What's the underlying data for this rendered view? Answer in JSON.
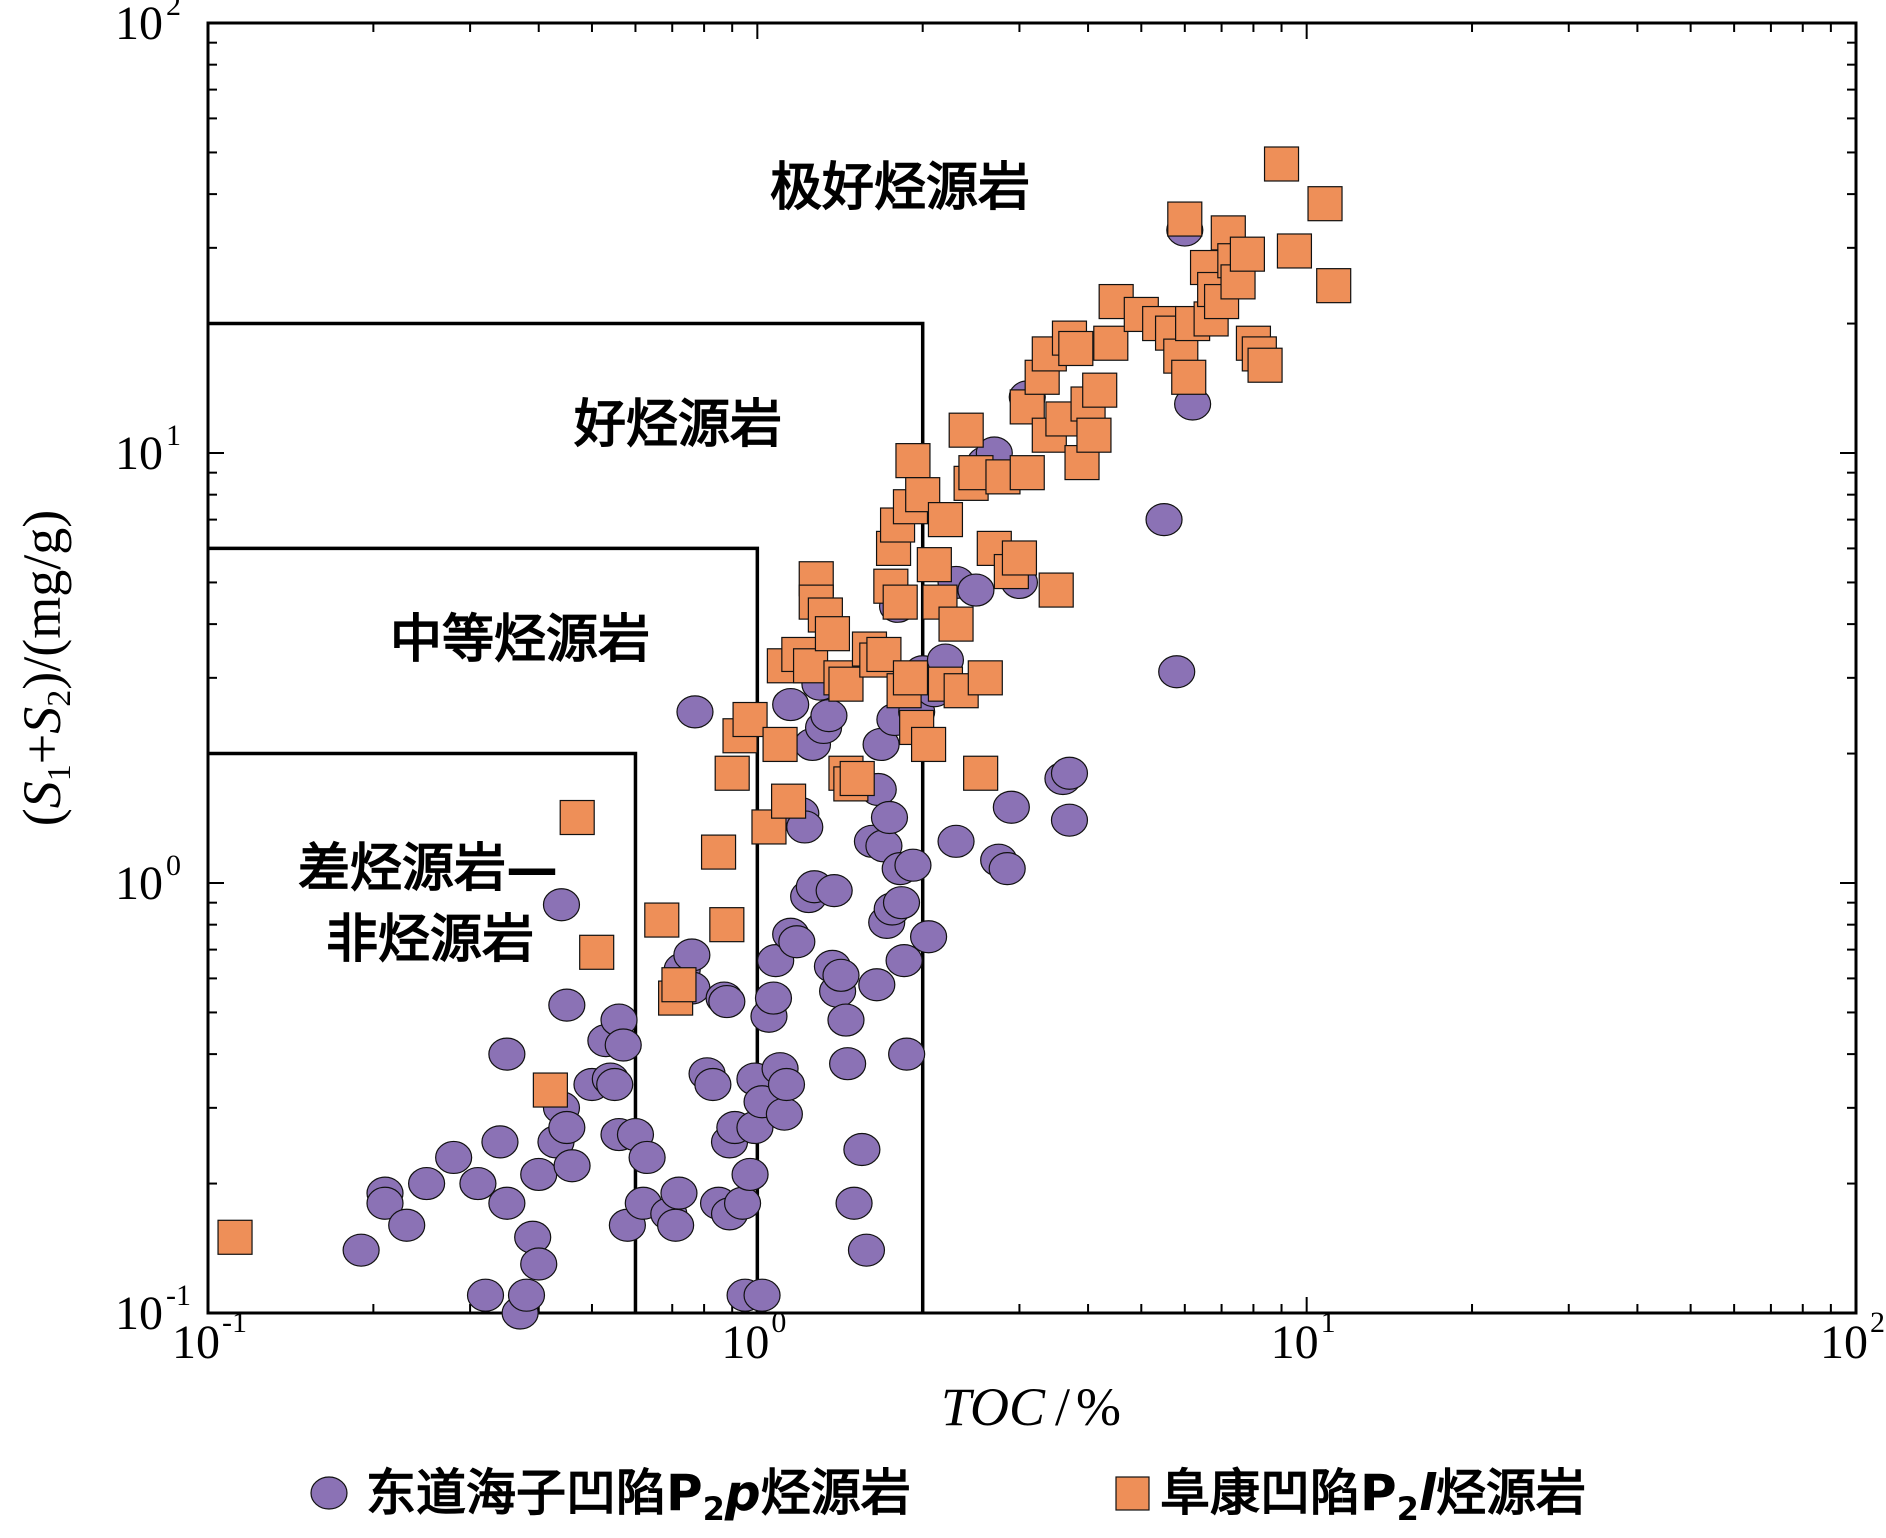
{
  "chart_data": {
    "type": "scatter",
    "x_scale": "log",
    "y_scale": "log",
    "xlim": [
      0.1,
      100
    ],
    "ylim": [
      0.1,
      100
    ],
    "grid": false,
    "legend_position": "bottom",
    "x_ticks": [
      {
        "base": "10",
        "exp": "-1",
        "value": 0.1
      },
      {
        "base": "10",
        "exp": "0",
        "value": 1
      },
      {
        "base": "10",
        "exp": "1",
        "value": 10
      },
      {
        "base": "10",
        "exp": "2",
        "value": 100
      }
    ],
    "y_ticks": [
      {
        "base": "10",
        "exp": "-1",
        "value": 0.1
      },
      {
        "base": "10",
        "exp": "0",
        "value": 1
      },
      {
        "base": "10",
        "exp": "1",
        "value": 10
      },
      {
        "base": "10",
        "exp": "2",
        "value": 100
      }
    ],
    "xlabel": {
      "main": "TOC",
      "separator": "/",
      "unit": "%"
    },
    "ylabel": {
      "p1": "(",
      "s1": "S",
      "sub1": "1",
      "plus": "+",
      "s2": "S",
      "sub2": "2",
      "p2": ")/(mg/g)"
    },
    "regions": [
      {
        "name": "极好烃源岩",
        "toc_max": 100,
        "s_max": 100
      },
      {
        "name": "好烃源岩",
        "toc_max": 2,
        "s_max": 20
      },
      {
        "name": "中等烃源岩",
        "toc_max": 1,
        "s_max": 6
      },
      {
        "name_line1": "差烃源岩—",
        "name_line2": "非烃源岩",
        "toc_max": 0.6,
        "s_max": 2
      }
    ],
    "series": [
      {
        "name": "东道海子凹陷P2p烃源岩",
        "legend_label": {
          "prefix": "东道海子凹陷P",
          "sub": "2",
          "italic": "p",
          "suffix": "烃源岩"
        },
        "marker": "circle",
        "color": "#8b72b5",
        "points": [
          [
            0.19,
            0.14
          ],
          [
            0.21,
            0.19
          ],
          [
            0.21,
            0.18
          ],
          [
            0.23,
            0.16
          ],
          [
            0.25,
            0.2
          ],
          [
            0.28,
            0.23
          ],
          [
            0.31,
            0.2
          ],
          [
            0.34,
            0.25
          ],
          [
            0.35,
            0.18
          ],
          [
            0.32,
            0.11
          ],
          [
            0.37,
            0.1
          ],
          [
            0.38,
            0.11
          ],
          [
            0.39,
            0.15
          ],
          [
            0.4,
            0.13
          ],
          [
            0.4,
            0.21
          ],
          [
            0.35,
            0.4
          ],
          [
            0.43,
            0.25
          ],
          [
            0.44,
            0.3
          ],
          [
            0.45,
            0.27
          ],
          [
            0.46,
            0.22
          ],
          [
            0.44,
            0.89
          ],
          [
            0.45,
            0.52
          ],
          [
            0.5,
            0.34
          ],
          [
            0.53,
            0.43
          ],
          [
            0.54,
            0.35
          ],
          [
            0.55,
            0.34
          ],
          [
            0.56,
            0.26
          ],
          [
            0.56,
            0.48
          ],
          [
            0.57,
            0.42
          ],
          [
            0.58,
            0.16
          ],
          [
            0.6,
            0.26
          ],
          [
            0.62,
            0.18
          ],
          [
            0.63,
            0.23
          ],
          [
            0.69,
            0.17
          ],
          [
            0.71,
            0.16
          ],
          [
            0.72,
            0.19
          ],
          [
            0.73,
            0.63
          ],
          [
            0.76,
            0.68
          ],
          [
            0.76,
            0.57
          ],
          [
            0.77,
            2.5
          ],
          [
            0.81,
            0.36
          ],
          [
            0.83,
            0.34
          ],
          [
            0.85,
            0.18
          ],
          [
            0.87,
            0.54
          ],
          [
            0.88,
            0.53
          ],
          [
            0.89,
            0.17
          ],
          [
            0.89,
            0.25
          ],
          [
            0.91,
            0.27
          ],
          [
            0.94,
            0.18
          ],
          [
            0.95,
            0.11
          ],
          [
            0.97,
            0.21
          ],
          [
            0.99,
            0.27
          ],
          [
            0.99,
            0.35
          ],
          [
            1.02,
            0.31
          ],
          [
            1.02,
            0.11
          ],
          [
            1.05,
            0.49
          ],
          [
            1.07,
            0.54
          ],
          [
            1.08,
            0.66
          ],
          [
            1.1,
            0.37
          ],
          [
            1.12,
            0.29
          ],
          [
            1.13,
            0.34
          ],
          [
            1.15,
            0.76
          ],
          [
            1.15,
            2.6
          ],
          [
            1.18,
            0.73
          ],
          [
            1.2,
            1.45
          ],
          [
            1.22,
            1.35
          ],
          [
            1.24,
            0.93
          ],
          [
            1.26,
            2.1
          ],
          [
            1.27,
            0.98
          ],
          [
            1.3,
            2.9
          ],
          [
            1.32,
            2.3
          ],
          [
            1.35,
            2.45
          ],
          [
            1.37,
            0.64
          ],
          [
            1.38,
            0.96
          ],
          [
            1.4,
            0.56
          ],
          [
            1.42,
            0.61
          ],
          [
            1.45,
            0.48
          ],
          [
            1.46,
            0.38
          ],
          [
            1.5,
            0.18
          ],
          [
            1.55,
            0.24
          ],
          [
            1.58,
            0.14
          ],
          [
            1.62,
            1.25
          ],
          [
            1.65,
            0.58
          ],
          [
            1.66,
            1.65
          ],
          [
            1.68,
            2.1
          ],
          [
            1.7,
            1.22
          ],
          [
            1.72,
            0.81
          ],
          [
            1.74,
            1.42
          ],
          [
            1.76,
            0.87
          ],
          [
            1.78,
            2.4
          ],
          [
            1.8,
            4.4
          ],
          [
            1.82,
            1.08
          ],
          [
            1.83,
            0.9
          ],
          [
            1.85,
            0.66
          ],
          [
            1.87,
            0.4
          ],
          [
            1.92,
            1.1
          ],
          [
            1.95,
            2.5
          ],
          [
            2,
            3.1
          ],
          [
            2.05,
            0.75
          ],
          [
            2.1,
            2.8
          ],
          [
            2.2,
            3.3
          ],
          [
            2.3,
            5
          ],
          [
            2.3,
            1.25
          ],
          [
            2.5,
            4.8
          ],
          [
            2.6,
            9.5
          ],
          [
            2.7,
            10
          ],
          [
            2.75,
            1.13
          ],
          [
            2.85,
            1.08
          ],
          [
            2.9,
            1.5
          ],
          [
            3,
            5
          ],
          [
            3.1,
            13.5
          ],
          [
            3.6,
            1.75
          ],
          [
            3.7,
            1.8
          ],
          [
            3.7,
            1.4
          ],
          [
            5.5,
            7
          ],
          [
            5.8,
            3.1
          ],
          [
            6,
            33
          ],
          [
            6.2,
            13
          ]
        ]
      },
      {
        "name": "阜康凹陷P2l烃源岩",
        "legend_label": {
          "prefix": "阜康凹陷P",
          "sub": "2",
          "italic": "l",
          "suffix": "烃源岩"
        },
        "marker": "square",
        "color": "#ee8f58",
        "points": [
          [
            0.112,
            0.15
          ],
          [
            0.42,
            0.33
          ],
          [
            0.47,
            1.42
          ],
          [
            0.51,
            0.69
          ],
          [
            0.67,
            0.82
          ],
          [
            0.71,
            0.54
          ],
          [
            0.72,
            0.58
          ],
          [
            0.85,
            1.18
          ],
          [
            0.88,
            0.8
          ],
          [
            0.9,
            1.8
          ],
          [
            0.93,
            2.2
          ],
          [
            0.97,
            2.4
          ],
          [
            1.05,
            1.35
          ],
          [
            1.1,
            2.1
          ],
          [
            1.12,
            3.2
          ],
          [
            1.14,
            1.55
          ],
          [
            1.19,
            3.4
          ],
          [
            1.25,
            3.2
          ],
          [
            1.28,
            5.1
          ],
          [
            1.28,
            4.5
          ],
          [
            1.33,
            4.2
          ],
          [
            1.37,
            3.8
          ],
          [
            1.42,
            3
          ],
          [
            1.45,
            2.9
          ],
          [
            1.45,
            1.8
          ],
          [
            1.48,
            1.7
          ],
          [
            1.52,
            1.75
          ],
          [
            1.6,
            3.5
          ],
          [
            1.65,
            3.3
          ],
          [
            1.7,
            3.4
          ],
          [
            1.75,
            4.9
          ],
          [
            1.77,
            6
          ],
          [
            1.8,
            6.8
          ],
          [
            1.82,
            4.5
          ],
          [
            1.85,
            2.8
          ],
          [
            1.9,
            3
          ],
          [
            1.9,
            7.5
          ],
          [
            1.92,
            9.6
          ],
          [
            1.95,
            2.3
          ],
          [
            2,
            8
          ],
          [
            2.05,
            2.1
          ],
          [
            2.1,
            5.5
          ],
          [
            2.15,
            4.5
          ],
          [
            2.2,
            7
          ],
          [
            2.2,
            2.9
          ],
          [
            2.3,
            4
          ],
          [
            2.35,
            2.8
          ],
          [
            2.4,
            11.3
          ],
          [
            2.45,
            8.5
          ],
          [
            2.5,
            9
          ],
          [
            2.55,
            1.8
          ],
          [
            2.6,
            3
          ],
          [
            2.7,
            6
          ],
          [
            2.8,
            8.8
          ],
          [
            2.9,
            5.3
          ],
          [
            3,
            5.7
          ],
          [
            3.1,
            12.8
          ],
          [
            3.1,
            9
          ],
          [
            3.3,
            15
          ],
          [
            3.4,
            17
          ],
          [
            3.4,
            11
          ],
          [
            3.5,
            4.8
          ],
          [
            3.6,
            12
          ],
          [
            3.7,
            18.5
          ],
          [
            3.8,
            17.5
          ],
          [
            3.9,
            9.5
          ],
          [
            4,
            13
          ],
          [
            4.1,
            11
          ],
          [
            4.2,
            14
          ],
          [
            4.4,
            18
          ],
          [
            4.5,
            22.5
          ],
          [
            5,
            21
          ],
          [
            5.4,
            20
          ],
          [
            5.7,
            19
          ],
          [
            5.9,
            16.8
          ],
          [
            6,
            35
          ],
          [
            6.1,
            15
          ],
          [
            6.2,
            20
          ],
          [
            6.6,
            27
          ],
          [
            6.7,
            20.5
          ],
          [
            6.8,
            24
          ],
          [
            7,
            22.5
          ],
          [
            7.2,
            32.5
          ],
          [
            7.4,
            28
          ],
          [
            7.5,
            25
          ],
          [
            7.8,
            29
          ],
          [
            8,
            18
          ],
          [
            8.2,
            17
          ],
          [
            8.4,
            16
          ],
          [
            9,
            47
          ],
          [
            9.5,
            29.5
          ],
          [
            10.8,
            38
          ],
          [
            11.2,
            24.5
          ]
        ]
      }
    ]
  }
}
